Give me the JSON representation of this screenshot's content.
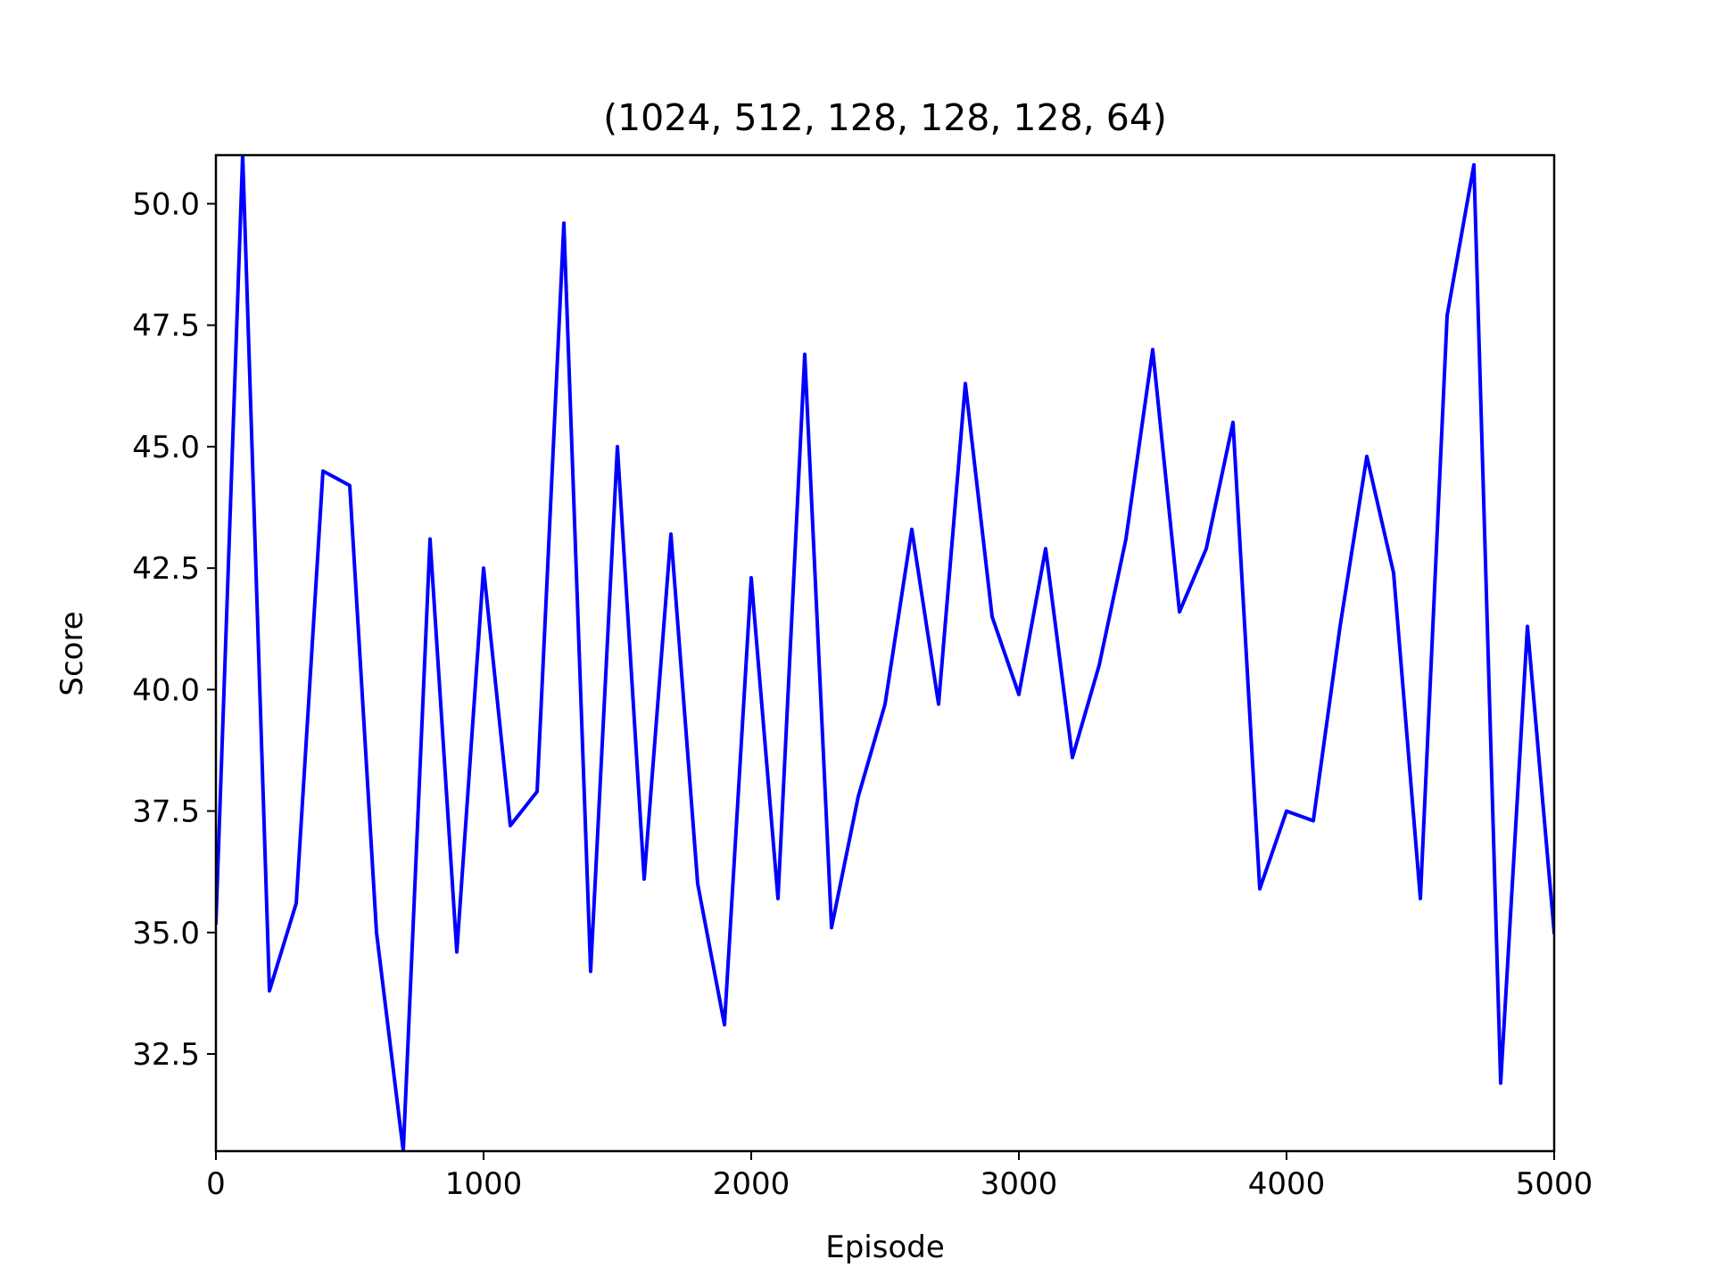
{
  "chart_data": {
    "type": "line",
    "title": "(1024, 512, 128, 128, 128, 64)",
    "xlabel": "Episode",
    "ylabel": "Score",
    "xlim": [
      0,
      5000
    ],
    "ylim": [
      30.5,
      51.0
    ],
    "xticks": [
      0,
      1000,
      2000,
      3000,
      4000,
      5000
    ],
    "xtick_labels": [
      "0",
      "1000",
      "2000",
      "3000",
      "4000",
      "5000"
    ],
    "yticks": [
      32.5,
      35.0,
      37.5,
      40.0,
      42.5,
      45.0,
      47.5,
      50.0
    ],
    "ytick_labels": [
      "32.5",
      "35.0",
      "37.5",
      "40.0",
      "42.5",
      "45.0",
      "47.5",
      "50.0"
    ],
    "grid": false,
    "series": [
      {
        "color": "#0000ff",
        "x": [
          0,
          100,
          200,
          300,
          400,
          500,
          600,
          700,
          800,
          900,
          1000,
          1100,
          1200,
          1300,
          1400,
          1500,
          1600,
          1700,
          1800,
          1900,
          2000,
          2100,
          2200,
          2300,
          2400,
          2500,
          2600,
          2700,
          2800,
          2900,
          3000,
          3100,
          3200,
          3300,
          3400,
          3500,
          3600,
          3700,
          3800,
          3900,
          4000,
          4100,
          4200,
          4300,
          4400,
          4500,
          4600,
          4700,
          4800,
          4900,
          5000
        ],
        "y": [
          35.2,
          51.0,
          33.8,
          35.6,
          44.5,
          44.2,
          35.0,
          30.5,
          43.1,
          34.6,
          42.5,
          37.2,
          37.9,
          49.6,
          34.2,
          45.0,
          36.1,
          43.2,
          36.0,
          33.1,
          42.3,
          35.7,
          46.9,
          35.1,
          37.8,
          39.7,
          43.3,
          39.7,
          46.3,
          41.5,
          39.9,
          42.9,
          38.6,
          40.5,
          43.1,
          47.0,
          41.6,
          42.9,
          45.5,
          35.9,
          37.5,
          37.3,
          41.3,
          44.8,
          42.4,
          35.7,
          47.7,
          50.8,
          31.9,
          41.3,
          35.0
        ]
      }
    ]
  }
}
